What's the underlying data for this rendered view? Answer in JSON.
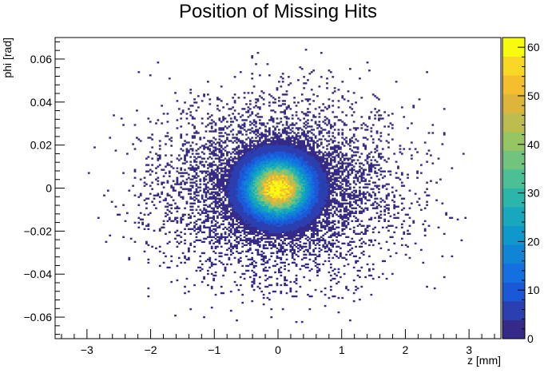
{
  "chart_data": {
    "type": "heatmap",
    "title": "Position of Missing Hits",
    "xlabel": "z [mm]",
    "ylabel": "phi [rad]",
    "xlim": [
      -3.5,
      3.5
    ],
    "ylim": [
      -0.07,
      0.07
    ],
    "x_ticks": [
      -3,
      -2,
      -1,
      0,
      1,
      2,
      3
    ],
    "y_ticks": [
      -0.06,
      -0.04,
      -0.02,
      0,
      0.02,
      0.04,
      0.06
    ],
    "x_tick_labels": [
      "−3",
      "−2",
      "−1",
      "0",
      "1",
      "2",
      "3"
    ],
    "y_tick_labels": [
      "−0.06",
      "−0.04",
      "−0.02",
      "0",
      "0.02",
      "0.04",
      "0.06"
    ],
    "colorbar": {
      "range": [
        0,
        62
      ],
      "ticks": [
        0,
        10,
        20,
        30,
        40,
        50,
        60
      ],
      "tick_labels": [
        "0",
        "10",
        "20",
        "30",
        "40",
        "50",
        "60"
      ],
      "palette": [
        "#352a87",
        "#2b3fb0",
        "#1b58d8",
        "#1470e0",
        "#1085d6",
        "#0f98ca",
        "#18a8bd",
        "#2bb5ab",
        "#4bbf96",
        "#70c47e",
        "#98c564",
        "#bdbd4f",
        "#deb53b",
        "#f5be2f",
        "#f8d824",
        "#f9fb0e"
      ]
    },
    "distribution": {
      "peak": {
        "z": 0.0,
        "phi": 0.0,
        "count": 61
      },
      "core_sigma": {
        "z": 0.3,
        "phi": 0.008
      },
      "tail_sigma": {
        "z": 0.9,
        "phi": 0.02
      },
      "extent": {
        "z": [
          -3.0,
          3.0
        ],
        "phi": [
          -0.065,
          0.065
        ]
      }
    }
  }
}
